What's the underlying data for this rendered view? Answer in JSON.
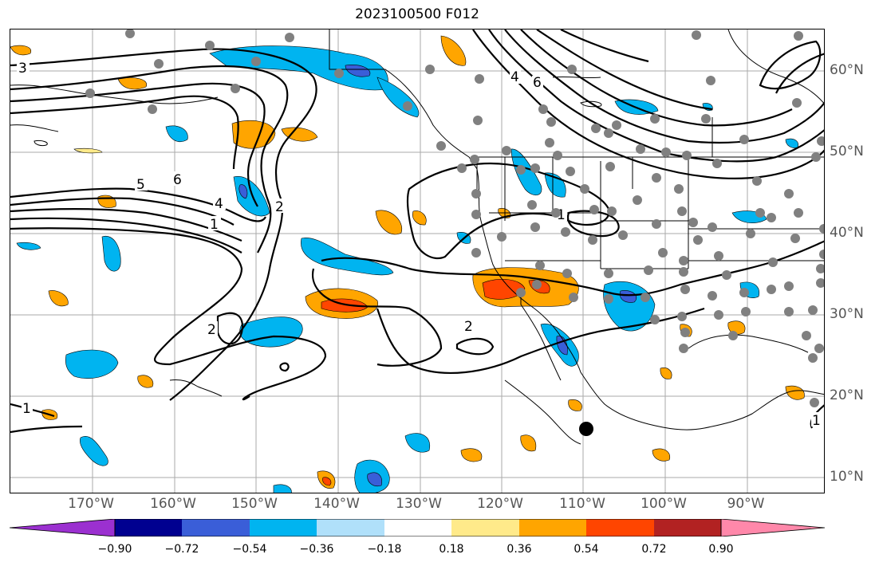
{
  "title": "2023100500 F012",
  "map": {
    "lon_labels": [
      "170°W",
      "160°W",
      "150°W",
      "140°W",
      "130°W",
      "120°W",
      "110°W",
      "100°W",
      "90°W"
    ],
    "lat_labels": [
      "60°N",
      "50°N",
      "40°N",
      "30°N",
      "20°N",
      "10°N"
    ],
    "contour_labels": [
      "3",
      "5",
      "6",
      "4",
      "1",
      "2",
      "4",
      "6",
      "1",
      "2",
      "2",
      "1",
      "1"
    ]
  },
  "colorbar": {
    "tick_labels": [
      "−0.90",
      "−0.72",
      "−0.54",
      "−0.36",
      "−0.18",
      "0.18",
      "0.36",
      "0.54",
      "0.72",
      "0.90"
    ],
    "colors": [
      "#9b30d0",
      "#000090",
      "#3a5ed8",
      "#00b4f0",
      "#b0e0fa",
      "#ffffff",
      "#ffea8a",
      "#ffa500",
      "#ff4500",
      "#b22222",
      "#ff88aa"
    ]
  },
  "colors": {
    "neg_light": "#00b4f0",
    "neg_mid": "#3a5ed8",
    "pos_light": "#ffa500",
    "pos_mid": "#ff4500",
    "station": "#808080",
    "contour": "#000000"
  }
}
